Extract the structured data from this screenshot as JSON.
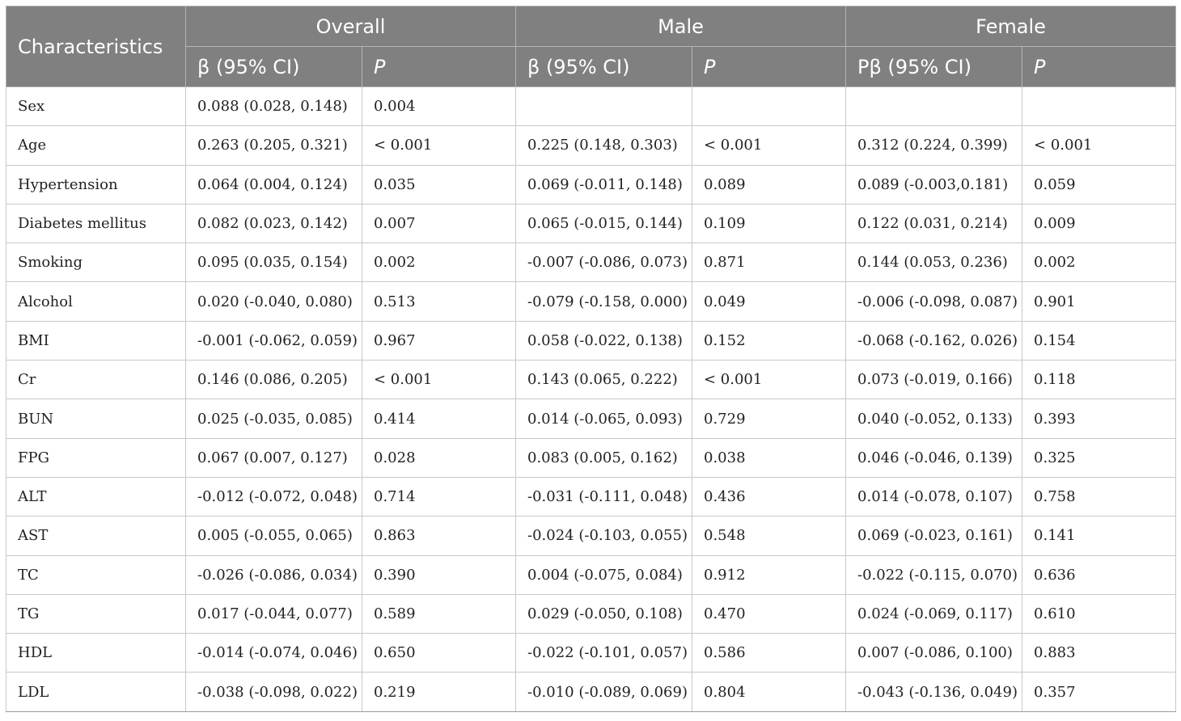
{
  "table": {
    "header": {
      "characteristics": "Characteristics",
      "groups": [
        "Overall",
        "Male",
        "Female"
      ],
      "subheaders": [
        "β (95% CI)",
        "P",
        "β (95% CI)",
        "P",
        "Pβ (95% CI)",
        "P"
      ]
    },
    "rows": [
      [
        "Sex",
        "0.088 (0.028, 0.148)",
        "0.004",
        "",
        "",
        "",
        ""
      ],
      [
        "Age",
        "0.263 (0.205, 0.321)",
        "< 0.001",
        "0.225 (0.148, 0.303)",
        "< 0.001",
        "0.312 (0.224, 0.399)",
        "< 0.001"
      ],
      [
        "Hypertension",
        "0.064 (0.004, 0.124)",
        "0.035",
        "0.069 (-0.011, 0.148)",
        "0.089",
        "0.089 (-0.003,0.181)",
        "0.059"
      ],
      [
        "Diabetes mellitus",
        "0.082 (0.023, 0.142)",
        "0.007",
        "0.065 (-0.015, 0.144)",
        "0.109",
        "0.122 (0.031, 0.214)",
        "0.009"
      ],
      [
        "Smoking",
        "0.095 (0.035, 0.154)",
        "0.002",
        "-0.007 (-0.086, 0.073)",
        "0.871",
        "0.144 (0.053, 0.236)",
        "0.002"
      ],
      [
        "Alcohol",
        "0.020 (-0.040, 0.080)",
        "0.513",
        "-0.079 (-0.158, 0.000)",
        "0.049",
        "-0.006 (-0.098, 0.087)",
        "0.901"
      ],
      [
        "BMI",
        "-0.001 (-0.062, 0.059)",
        "0.967",
        "0.058 (-0.022, 0.138)",
        "0.152",
        "-0.068 (-0.162, 0.026)",
        "0.154"
      ],
      [
        "Cr",
        "0.146 (0.086, 0.205)",
        "< 0.001",
        "0.143 (0.065, 0.222)",
        "< 0.001",
        "0.073 (-0.019, 0.166)",
        "0.118"
      ],
      [
        "BUN",
        "0.025 (-0.035, 0.085)",
        "0.414",
        "0.014 (-0.065, 0.093)",
        "0.729",
        "0.040 (-0.052, 0.133)",
        "0.393"
      ],
      [
        "FPG",
        "0.067 (0.007, 0.127)",
        "0.028",
        "0.083 (0.005, 0.162)",
        "0.038",
        "0.046 (-0.046, 0.139)",
        "0.325"
      ],
      [
        "ALT",
        "-0.012 (-0.072, 0.048)",
        "0.714",
        "-0.031 (-0.111, 0.048)",
        "0.436",
        "0.014 (-0.078, 0.107)",
        "0.758"
      ],
      [
        "AST",
        "0.005 (-0.055, 0.065)",
        "0.863",
        "-0.024 (-0.103, 0.055)",
        "0.548",
        "0.069 (-0.023, 0.161)",
        "0.141"
      ],
      [
        "TC",
        "-0.026 (-0.086, 0.034)",
        "0.390",
        "0.004 (-0.075, 0.084)",
        "0.912",
        "-0.022 (-0.115, 0.070)",
        "0.636"
      ],
      [
        "TG",
        "0.017 (-0.044, 0.077)",
        "0.589",
        "0.029 (-0.050, 0.108)",
        "0.470",
        "0.024 (-0.069, 0.117)",
        "0.610"
      ],
      [
        "HDL",
        "-0.014 (-0.074, 0.046)",
        "0.650",
        "-0.022 (-0.101, 0.057)",
        "0.586",
        "0.007 (-0.086, 0.100)",
        "0.883"
      ],
      [
        "LDL",
        "-0.038 (-0.098, 0.022)",
        "0.219",
        "-0.010 (-0.089, 0.069)",
        "0.804",
        "-0.043 (-0.136, 0.049)",
        "0.357"
      ]
    ]
  }
}
